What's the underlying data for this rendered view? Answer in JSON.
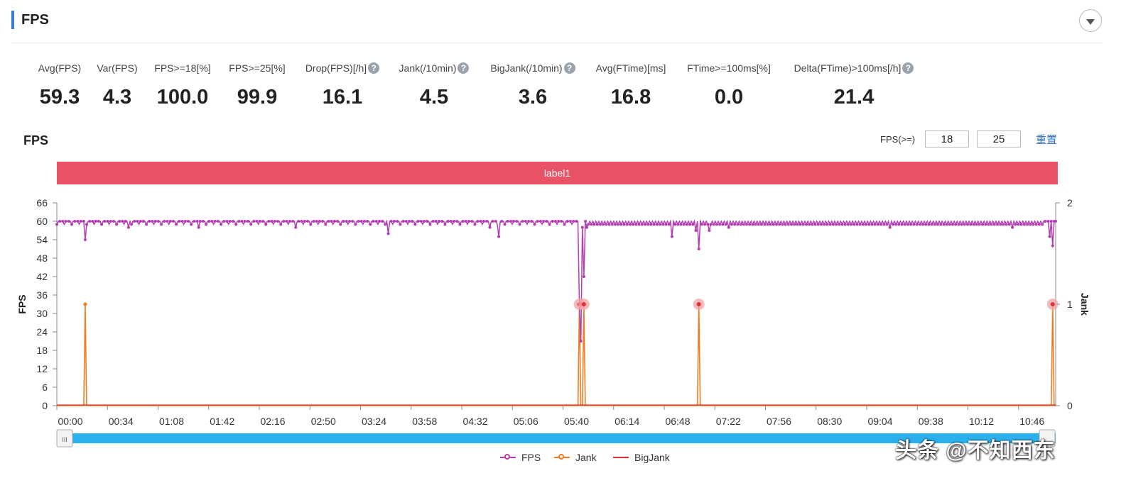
{
  "header": {
    "title": "FPS"
  },
  "stats": [
    {
      "label": "Avg(FPS)",
      "value": "59.3",
      "help": false
    },
    {
      "label": "Var(FPS)",
      "value": "4.3",
      "help": false
    },
    {
      "label": "FPS>=18[%]",
      "value": "100.0",
      "help": false
    },
    {
      "label": "FPS>=25[%]",
      "value": "99.9",
      "help": false
    },
    {
      "label": "Drop(FPS)[/h]",
      "value": "16.1",
      "help": true
    },
    {
      "label": "Jank(/10min)",
      "value": "4.5",
      "help": true
    },
    {
      "label": "BigJank(/10min)",
      "value": "3.6",
      "help": true
    },
    {
      "label": "Avg(FTime)[ms]",
      "value": "16.8",
      "help": false
    },
    {
      "label": "FTime>=100ms[%]",
      "value": "0.0",
      "help": false
    },
    {
      "label": "Delta(FTime)>100ms[/h]",
      "value": "21.4",
      "help": true
    }
  ],
  "help_glyph": "?",
  "chart_section": {
    "title": "FPS",
    "threshold_label": "FPS(>=)",
    "threshold_low": "18",
    "threshold_high": "25",
    "reset_label": "重置",
    "band_label": "label1"
  },
  "chart_data": {
    "type": "line",
    "ylabel": "FPS",
    "y2label": "Jank",
    "ylim": [
      0,
      66
    ],
    "y2lim": [
      0,
      2
    ],
    "yticks": [
      0,
      6,
      12,
      18,
      24,
      30,
      36,
      42,
      48,
      54,
      60,
      66
    ],
    "y2ticks": [
      0,
      1,
      2
    ],
    "xtick_labels": [
      "00:00",
      "00:34",
      "01:08",
      "01:42",
      "02:16",
      "02:50",
      "03:24",
      "03:58",
      "04:32",
      "05:06",
      "05:40",
      "06:14",
      "06:48",
      "07:22",
      "07:56",
      "08:30",
      "09:04",
      "09:38",
      "10:12",
      "10:46"
    ],
    "xlim_seconds": [
      0,
      669
    ],
    "fps_baseline": 60,
    "fps_dips": [
      {
        "t": 19,
        "fps": 54
      },
      {
        "t": 48,
        "fps": 58
      },
      {
        "t": 95,
        "fps": 58
      },
      {
        "t": 160,
        "fps": 58
      },
      {
        "t": 222,
        "fps": 56
      },
      {
        "t": 290,
        "fps": 58
      },
      {
        "t": 296,
        "fps": 55
      },
      {
        "t": 350,
        "fps": 33
      },
      {
        "t": 351,
        "fps": 21
      },
      {
        "t": 352,
        "fps": 58
      },
      {
        "t": 353,
        "fps": 42
      },
      {
        "t": 355,
        "fps": 58
      },
      {
        "t": 412,
        "fps": 55
      },
      {
        "t": 428,
        "fps": 57
      },
      {
        "t": 430,
        "fps": 51
      },
      {
        "t": 432,
        "fps": 59
      },
      {
        "t": 437,
        "fps": 57
      },
      {
        "t": 450,
        "fps": 58
      },
      {
        "t": 558,
        "fps": 58
      },
      {
        "t": 640,
        "fps": 58
      },
      {
        "t": 665,
        "fps": 55
      },
      {
        "t": 667,
        "fps": 52
      },
      {
        "t": 669,
        "fps": 60
      }
    ],
    "jank_events": [
      19,
      350,
      353,
      430,
      667
    ],
    "bigjank_events": [
      350,
      353,
      430,
      667
    ],
    "series": [
      {
        "name": "FPS",
        "color": "#b43fb2"
      },
      {
        "name": "Jank",
        "color": "#ee7d24"
      },
      {
        "name": "BigJank",
        "color": "#d93434"
      }
    ]
  },
  "slider": {
    "handle_glyph": "III"
  },
  "watermark": "头条 @不知西东"
}
